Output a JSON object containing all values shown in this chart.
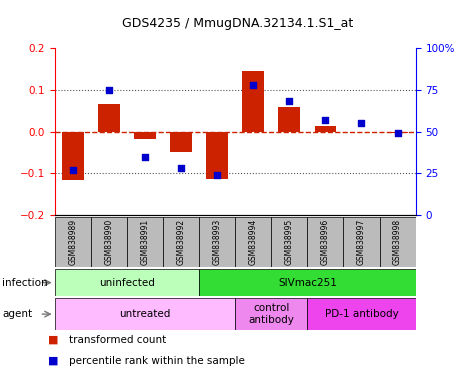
{
  "title": "GDS4235 / MmugDNA.32134.1.S1_at",
  "samples": [
    "GSM838989",
    "GSM838990",
    "GSM838991",
    "GSM838992",
    "GSM838993",
    "GSM838994",
    "GSM838995",
    "GSM838996",
    "GSM838997",
    "GSM838998"
  ],
  "bar_values": [
    -0.115,
    0.065,
    -0.018,
    -0.05,
    -0.113,
    0.145,
    0.058,
    0.013,
    -0.002,
    -0.003
  ],
  "dot_values": [
    27,
    75,
    35,
    28,
    24,
    78,
    68,
    57,
    55,
    49
  ],
  "ylim_left": [
    -0.2,
    0.2
  ],
  "ylim_right": [
    0,
    100
  ],
  "yticks_left": [
    -0.2,
    -0.1,
    0.0,
    0.1,
    0.2
  ],
  "yticks_right": [
    0,
    25,
    50,
    75,
    100
  ],
  "ytick_labels_right": [
    "0",
    "25",
    "50",
    "75",
    "100%"
  ],
  "bar_color": "#cc2200",
  "dot_color": "#0000cc",
  "hline_color": "#cc2200",
  "dotted_color": "#555555",
  "infection_groups": [
    {
      "label": "uninfected",
      "start": 0,
      "end": 4,
      "color": "#bbffbb"
    },
    {
      "label": "SIVmac251",
      "start": 4,
      "end": 10,
      "color": "#33dd33"
    }
  ],
  "agent_groups": [
    {
      "label": "untreated",
      "start": 0,
      "end": 5,
      "color": "#ffbbff"
    },
    {
      "label": "control\nantibody",
      "start": 5,
      "end": 7,
      "color": "#ee88ee"
    },
    {
      "label": "PD-1 antibody",
      "start": 7,
      "end": 10,
      "color": "#ee44ee"
    }
  ],
  "legend_items": [
    {
      "label": "transformed count",
      "color": "#cc2200"
    },
    {
      "label": "percentile rank within the sample",
      "color": "#0000cc"
    }
  ],
  "infection_label": "infection",
  "agent_label": "agent",
  "background_color": "#ffffff",
  "plot_bg": "#ffffff",
  "tick_label_bg": "#bbbbbb"
}
